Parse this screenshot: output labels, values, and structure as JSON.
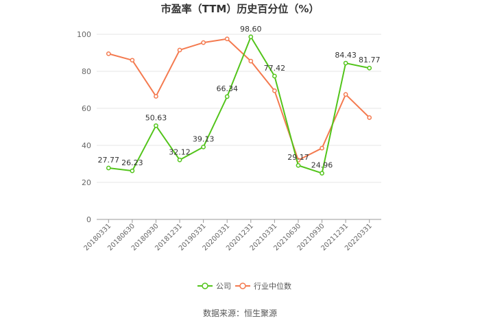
{
  "chart_data": {
    "type": "line",
    "title": "市盈率（TTM）历史百分位（%）",
    "source": "数据来源：恒生聚源",
    "categories": [
      "20180331",
      "20180630",
      "20180930",
      "20181231",
      "20190331",
      "20200331",
      "20201231",
      "20210331",
      "20210630",
      "20210930",
      "20211231",
      "20220331"
    ],
    "ylim": [
      0,
      100
    ],
    "yticks": [
      0,
      20,
      40,
      60,
      80,
      100
    ],
    "grid": true,
    "legend_position": "bottom",
    "series": [
      {
        "name": "公司",
        "color": "#52c41a",
        "values": [
          27.77,
          26.23,
          50.63,
          32.12,
          39.13,
          66.34,
          98.6,
          77.42,
          29.17,
          24.96,
          84.43,
          81.77
        ],
        "labels": [
          "27.77",
          "26.23",
          "50.63",
          "32.12",
          "39.13",
          "66.34",
          "98.60",
          "77.42",
          "29.17",
          "24.96",
          "84.43",
          "81.77"
        ]
      },
      {
        "name": "行业中位数",
        "color": "#f47a4f",
        "values": [
          89.5,
          86,
          66.5,
          91.5,
          95.5,
          97.5,
          85.5,
          69.5,
          32,
          38.5,
          67.5,
          55
        ]
      }
    ]
  }
}
